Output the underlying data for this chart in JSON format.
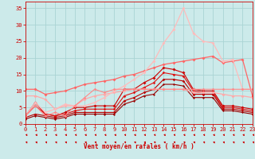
{
  "xlabel": "Vent moyen/en rafales ( km/h )",
  "xlim": [
    0,
    23
  ],
  "ylim": [
    0,
    37
  ],
  "yticks": [
    0,
    5,
    10,
    15,
    20,
    25,
    30,
    35
  ],
  "xticks": [
    0,
    1,
    2,
    3,
    4,
    5,
    6,
    7,
    8,
    9,
    10,
    11,
    12,
    13,
    14,
    15,
    16,
    17,
    18,
    19,
    20,
    21,
    22,
    23
  ],
  "bg_color": "#cceaea",
  "grid_color": "#aad4d4",
  "series": [
    {
      "y": [
        2.5,
        6.5,
        3.0,
        2.5,
        3.5,
        5.0,
        5.0,
        5.5,
        5.5,
        5.5,
        10.5,
        10.5,
        12.5,
        14.0,
        17.0,
        16.5,
        15.5,
        10.5,
        10.0,
        10.0,
        5.5,
        5.5,
        5.0,
        4.5
      ],
      "color": "#cc0000",
      "lw": 0.8,
      "ms": 2.0
    },
    {
      "y": [
        2.5,
        5.5,
        3.0,
        2.5,
        3.0,
        4.0,
        4.5,
        4.5,
        4.5,
        4.5,
        8.5,
        9.5,
        11.0,
        12.5,
        15.5,
        15.0,
        14.5,
        10.0,
        9.5,
        9.5,
        5.0,
        5.0,
        4.5,
        4.0
      ],
      "color": "#dd1111",
      "lw": 0.8,
      "ms": 1.8
    },
    {
      "y": [
        2.0,
        3.0,
        2.5,
        2.0,
        2.5,
        3.5,
        3.5,
        3.5,
        3.5,
        3.5,
        7.0,
        8.0,
        9.5,
        10.5,
        13.5,
        13.5,
        13.0,
        9.0,
        9.0,
        9.0,
        4.5,
        4.5,
        4.0,
        3.5
      ],
      "color": "#bb0000",
      "lw": 0.8,
      "ms": 1.8
    },
    {
      "y": [
        1.5,
        2.5,
        2.0,
        1.5,
        2.0,
        3.0,
        3.0,
        3.0,
        3.0,
        3.0,
        6.0,
        7.0,
        8.5,
        9.0,
        12.0,
        12.0,
        11.5,
        8.0,
        8.0,
        8.0,
        4.0,
        4.0,
        3.5,
        3.0
      ],
      "color": "#990000",
      "lw": 0.8,
      "ms": 1.5
    },
    {
      "y": [
        10.5,
        10.5,
        9.0,
        9.5,
        10.0,
        11.0,
        12.0,
        12.5,
        13.0,
        13.5,
        14.5,
        15.0,
        16.0,
        17.0,
        18.0,
        18.5,
        19.0,
        19.5,
        20.0,
        20.5,
        18.5,
        19.0,
        19.5,
        8.5
      ],
      "color": "#ff6666",
      "lw": 0.9,
      "ms": 2.0
    },
    {
      "y": [
        8.5,
        8.5,
        7.5,
        4.5,
        5.5,
        5.5,
        7.5,
        8.5,
        9.0,
        9.5,
        10.0,
        10.5,
        10.5,
        10.5,
        10.5,
        10.5,
        10.5,
        9.5,
        9.5,
        9.5,
        9.0,
        8.5,
        8.5,
        8.0
      ],
      "color": "#ffaaaa",
      "lw": 0.9,
      "ms": 2.0
    },
    {
      "y": [
        2.5,
        6.5,
        3.5,
        4.5,
        6.0,
        5.5,
        5.5,
        6.5,
        8.0,
        10.0,
        11.5,
        13.5,
        15.5,
        19.0,
        24.5,
        28.5,
        35.0,
        27.5,
        25.0,
        24.5,
        19.0,
        19.5,
        10.5,
        10.5
      ],
      "color": "#ffbbbb",
      "lw": 0.9,
      "ms": 2.0
    },
    {
      "y": [
        2.5,
        5.5,
        2.5,
        3.5,
        2.5,
        5.5,
        8.0,
        10.5,
        9.5,
        10.5,
        10.5,
        10.5,
        10.5,
        10.5,
        10.5,
        10.5,
        10.5,
        10.5,
        10.5,
        10.5,
        10.5,
        10.5,
        10.5,
        10.5
      ],
      "color": "#ff8888",
      "lw": 0.8,
      "ms": 1.8
    }
  ],
  "title_color": "#cc0000",
  "axis_color": "#cc0000",
  "tick_color": "#cc0000"
}
